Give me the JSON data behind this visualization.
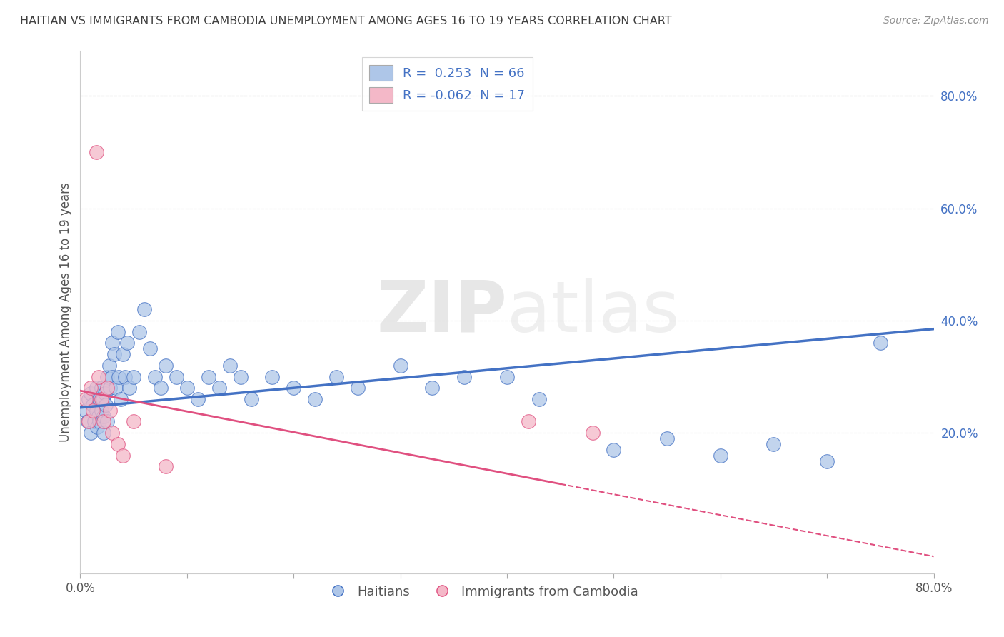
{
  "title": "HAITIAN VS IMMIGRANTS FROM CAMBODIA UNEMPLOYMENT AMONG AGES 16 TO 19 YEARS CORRELATION CHART",
  "source": "Source: ZipAtlas.com",
  "ylabel": "Unemployment Among Ages 16 to 19 years",
  "right_yticks": [
    "80.0%",
    "60.0%",
    "40.0%",
    "20.0%"
  ],
  "right_ytick_vals": [
    0.8,
    0.6,
    0.4,
    0.2
  ],
  "xmin": 0.0,
  "xmax": 0.8,
  "ymin": -0.05,
  "ymax": 0.88,
  "legend1_label": "R =  0.253  N = 66",
  "legend2_label": "R = -0.062  N = 17",
  "legend1_color": "#aec6e8",
  "legend2_color": "#f4b8c8",
  "line1_x0": 0.0,
  "line1_x1": 0.8,
  "line1_y0": 0.245,
  "line1_y1": 0.385,
  "line2_x0": 0.0,
  "line2_x1": 0.8,
  "line2_y0": 0.275,
  "line2_y1": -0.02,
  "line2_solid_end": 0.45,
  "line1_color": "#4472c4",
  "line2_color": "#e05080",
  "scatter_haiti_color": "#aec6e8",
  "scatter_cambodia_color": "#f4b8c8",
  "watermark_color": "#d8d8d8",
  "background_color": "#ffffff",
  "grid_color": "#c8c8c8",
  "title_color": "#404040",
  "axis_label_color": "#555555",
  "source_color": "#909090",
  "haiti_x": [
    0.005,
    0.007,
    0.008,
    0.01,
    0.01,
    0.012,
    0.013,
    0.015,
    0.015,
    0.016,
    0.017,
    0.018,
    0.018,
    0.02,
    0.02,
    0.021,
    0.022,
    0.022,
    0.023,
    0.024,
    0.025,
    0.025,
    0.027,
    0.028,
    0.03,
    0.03,
    0.032,
    0.033,
    0.035,
    0.036,
    0.038,
    0.04,
    0.042,
    0.044,
    0.046,
    0.05,
    0.055,
    0.06,
    0.065,
    0.07,
    0.075,
    0.08,
    0.09,
    0.1,
    0.11,
    0.12,
    0.13,
    0.14,
    0.15,
    0.16,
    0.18,
    0.2,
    0.22,
    0.24,
    0.26,
    0.3,
    0.33,
    0.36,
    0.4,
    0.43,
    0.5,
    0.55,
    0.6,
    0.65,
    0.7,
    0.75
  ],
  "haiti_y": [
    0.24,
    0.22,
    0.26,
    0.27,
    0.2,
    0.25,
    0.22,
    0.28,
    0.24,
    0.21,
    0.23,
    0.26,
    0.22,
    0.28,
    0.24,
    0.26,
    0.23,
    0.2,
    0.27,
    0.25,
    0.3,
    0.22,
    0.32,
    0.28,
    0.36,
    0.3,
    0.34,
    0.28,
    0.38,
    0.3,
    0.26,
    0.34,
    0.3,
    0.36,
    0.28,
    0.3,
    0.38,
    0.42,
    0.35,
    0.3,
    0.28,
    0.32,
    0.3,
    0.28,
    0.26,
    0.3,
    0.28,
    0.32,
    0.3,
    0.26,
    0.3,
    0.28,
    0.26,
    0.3,
    0.28,
    0.32,
    0.28,
    0.3,
    0.3,
    0.26,
    0.17,
    0.19,
    0.16,
    0.18,
    0.15,
    0.36
  ],
  "cambodia_x": [
    0.005,
    0.008,
    0.01,
    0.012,
    0.015,
    0.017,
    0.02,
    0.022,
    0.025,
    0.028,
    0.03,
    0.035,
    0.04,
    0.05,
    0.08,
    0.42,
    0.48
  ],
  "cambodia_y": [
    0.26,
    0.22,
    0.28,
    0.24,
    0.7,
    0.3,
    0.26,
    0.22,
    0.28,
    0.24,
    0.2,
    0.18,
    0.16,
    0.22,
    0.14,
    0.22,
    0.2
  ]
}
